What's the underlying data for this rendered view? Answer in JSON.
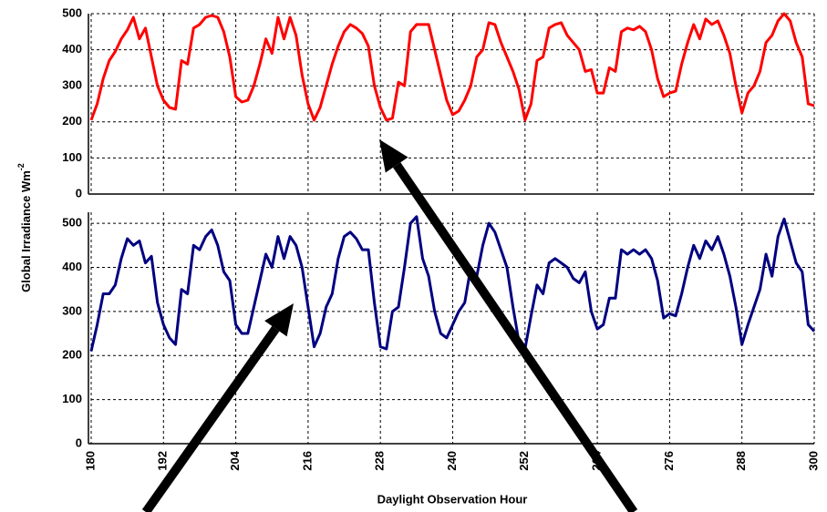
{
  "chart_data": [
    {
      "type": "line",
      "ylabel": "Global Irradiance Wm",
      "ylabel_superscript": "-2",
      "xlim": [
        180,
        300
      ],
      "ylim": [
        0,
        500
      ],
      "yticks": [
        0,
        100,
        200,
        300,
        400,
        500
      ],
      "grid": true,
      "x": [
        180,
        181,
        182,
        183,
        184,
        185,
        186,
        187,
        188,
        189,
        190,
        191,
        192,
        193,
        194,
        195,
        196,
        197,
        198,
        199,
        200,
        201,
        202,
        203,
        204,
        205,
        206,
        207,
        208,
        209,
        210,
        211,
        212,
        213,
        214,
        215,
        216,
        217,
        218,
        219,
        220,
        221,
        222,
        223,
        224,
        225,
        226,
        227,
        228,
        229,
        230,
        231,
        232,
        233,
        234,
        235,
        236,
        237,
        238,
        239,
        240,
        241,
        242,
        243,
        244,
        245,
        246,
        247,
        248,
        249,
        250,
        251,
        252,
        253,
        254,
        255,
        256,
        257,
        258,
        259,
        260,
        261,
        262,
        263,
        264,
        265,
        266,
        267,
        268,
        269,
        270,
        271,
        272,
        273,
        274,
        275,
        276,
        277,
        278,
        279,
        280,
        281,
        282,
        283,
        284,
        285,
        286,
        287,
        288,
        289,
        290,
        291,
        292,
        293,
        294,
        295,
        296,
        297,
        298,
        299,
        300
      ],
      "series": [
        {
          "color": "#ff0000",
          "values": [
            205,
            250,
            320,
            370,
            395,
            430,
            455,
            490,
            430,
            460,
            380,
            300,
            260,
            240,
            235,
            370,
            360,
            460,
            470,
            490,
            495,
            490,
            450,
            380,
            270,
            255,
            260,
            300,
            360,
            430,
            390,
            490,
            430,
            490,
            440,
            330,
            250,
            205,
            240,
            300,
            360,
            410,
            450,
            470,
            460,
            445,
            410,
            300,
            240,
            205,
            210,
            310,
            300,
            450,
            470,
            470,
            470,
            400,
            330,
            260,
            220,
            230,
            260,
            300,
            380,
            400,
            475,
            470,
            420,
            380,
            340,
            290,
            205,
            250,
            370,
            380,
            460,
            470,
            475,
            440,
            420,
            400,
            340,
            345,
            280,
            280,
            350,
            340,
            450,
            460,
            455,
            465,
            450,
            400,
            320,
            270,
            280,
            285,
            360,
            420,
            470,
            430,
            485,
            470,
            480,
            440,
            390,
            300,
            225,
            280,
            300,
            340,
            420,
            440,
            480,
            500,
            480,
            420,
            380,
            250,
            245
          ]
        }
      ]
    },
    {
      "type": "line",
      "xlabel": "Daylight Observation Hour",
      "xlim": [
        180,
        300
      ],
      "xticks": [
        180,
        192,
        204,
        216,
        228,
        240,
        252,
        264,
        276,
        288,
        300
      ],
      "ylim": [
        0,
        525
      ],
      "yticks": [
        0,
        100,
        200,
        300,
        400,
        500
      ],
      "grid": true,
      "x": [
        180,
        181,
        182,
        183,
        184,
        185,
        186,
        187,
        188,
        189,
        190,
        191,
        192,
        193,
        194,
        195,
        196,
        197,
        198,
        199,
        200,
        201,
        202,
        203,
        204,
        205,
        206,
        207,
        208,
        209,
        210,
        211,
        212,
        213,
        214,
        215,
        216,
        217,
        218,
        219,
        220,
        221,
        222,
        223,
        224,
        225,
        226,
        227,
        228,
        229,
        230,
        231,
        232,
        233,
        234,
        235,
        236,
        237,
        238,
        239,
        240,
        241,
        242,
        243,
        244,
        245,
        246,
        247,
        248,
        249,
        250,
        251,
        252,
        253,
        254,
        255,
        256,
        257,
        258,
        259,
        260,
        261,
        262,
        263,
        264,
        265,
        266,
        267,
        268,
        269,
        270,
        271,
        272,
        273,
        274,
        275,
        276,
        277,
        278,
        279,
        280,
        281,
        282,
        283,
        284,
        285,
        286,
        287,
        288,
        289,
        290,
        291,
        292,
        293,
        294,
        295,
        296,
        297,
        298,
        299,
        300
      ],
      "series": [
        {
          "color": "#000080",
          "values": [
            210,
            270,
            340,
            340,
            360,
            420,
            465,
            450,
            460,
            410,
            425,
            320,
            270,
            240,
            225,
            350,
            340,
            450,
            440,
            470,
            485,
            450,
            390,
            370,
            270,
            250,
            250,
            310,
            370,
            430,
            400,
            470,
            420,
            470,
            450,
            400,
            310,
            220,
            250,
            310,
            340,
            420,
            470,
            480,
            465,
            440,
            440,
            320,
            220,
            215,
            300,
            310,
            400,
            500,
            515,
            420,
            380,
            300,
            250,
            240,
            270,
            300,
            320,
            400,
            380,
            450,
            500,
            480,
            440,
            400,
            310,
            230,
            215,
            290,
            360,
            340,
            410,
            420,
            410,
            400,
            375,
            365,
            390,
            300,
            260,
            270,
            330,
            330,
            440,
            430,
            440,
            430,
            440,
            420,
            370,
            285,
            295,
            290,
            340,
            400,
            450,
            420,
            460,
            440,
            470,
            430,
            380,
            310,
            225,
            270,
            310,
            350,
            430,
            380,
            470,
            510,
            460,
            410,
            390,
            270,
            255
          ]
        }
      ]
    }
  ]
}
